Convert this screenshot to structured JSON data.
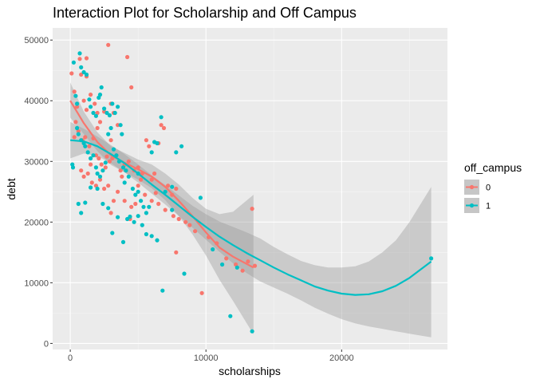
{
  "chart_data": {
    "type": "scatter",
    "title": "Interaction Plot for Scholarship and Off Campus",
    "xlabel": "scholarships",
    "ylabel": "debt",
    "xlim": [
      -1300,
      27800
    ],
    "ylim": [
      -1000,
      52000
    ],
    "x_ticks": [
      0,
      10000,
      20000
    ],
    "x_tick_labels": [
      "0",
      "10000",
      "20000"
    ],
    "y_ticks": [
      0,
      10000,
      20000,
      30000,
      40000,
      50000
    ],
    "y_tick_labels": [
      "0",
      "10000",
      "20000",
      "30000",
      "40000",
      "50000"
    ],
    "grid": true,
    "legend": {
      "title": "off_campus",
      "placement": "right"
    },
    "series": [
      {
        "name": "0",
        "color": "#F8766D",
        "points": [
          [
            100,
            44500
          ],
          [
            300,
            41500
          ],
          [
            500,
            39000
          ],
          [
            800,
            44300
          ],
          [
            1000,
            40000
          ],
          [
            1200,
            38500
          ],
          [
            1500,
            41000
          ],
          [
            1800,
            39500
          ],
          [
            2000,
            38000
          ],
          [
            2200,
            36500
          ],
          [
            2500,
            38200
          ],
          [
            2800,
            49200
          ],
          [
            3000,
            39500
          ],
          [
            3200,
            38000
          ],
          [
            3500,
            36000
          ],
          [
            4200,
            47200
          ],
          [
            4500,
            42200
          ],
          [
            1200,
            47000
          ],
          [
            700,
            46900
          ],
          [
            400,
            36500
          ],
          [
            600,
            35000
          ],
          [
            900,
            33500
          ],
          [
            1100,
            34000
          ],
          [
            1400,
            32500
          ],
          [
            1700,
            33800
          ],
          [
            1900,
            31000
          ],
          [
            2100,
            30500
          ],
          [
            2300,
            29500
          ],
          [
            2600,
            29000
          ],
          [
            2900,
            30000
          ],
          [
            3100,
            30500
          ],
          [
            3400,
            31000
          ],
          [
            3700,
            28500
          ],
          [
            4000,
            29500
          ],
          [
            4300,
            30000
          ],
          [
            4700,
            28500
          ],
          [
            5000,
            29000
          ],
          [
            5300,
            28000
          ],
          [
            5600,
            33500
          ],
          [
            5800,
            32500
          ],
          [
            6000,
            27000
          ],
          [
            6200,
            28000
          ],
          [
            6500,
            33000
          ],
          [
            6700,
            36000
          ],
          [
            6900,
            35500
          ],
          [
            7200,
            26000
          ],
          [
            7500,
            24500
          ],
          [
            7800,
            25500
          ],
          [
            800,
            28500
          ],
          [
            1000,
            27500
          ],
          [
            1300,
            28000
          ],
          [
            1600,
            26500
          ],
          [
            1900,
            26000
          ],
          [
            2200,
            27000
          ],
          [
            2500,
            25500
          ],
          [
            2800,
            26000
          ],
          [
            3000,
            21500
          ],
          [
            3200,
            23500
          ],
          [
            3500,
            25000
          ],
          [
            4000,
            23500
          ],
          [
            4500,
            22500
          ],
          [
            5000,
            26000
          ],
          [
            5500,
            24500
          ],
          [
            6000,
            23500
          ],
          [
            6500,
            23000
          ],
          [
            7000,
            22000
          ],
          [
            7600,
            21000
          ],
          [
            8000,
            20500
          ],
          [
            8500,
            20000
          ],
          [
            8800,
            19500
          ],
          [
            9200,
            18500
          ],
          [
            9700,
            8300
          ],
          [
            10200,
            17500
          ],
          [
            10800,
            16500
          ],
          [
            11500,
            14000
          ],
          [
            12200,
            13000
          ],
          [
            12700,
            12000
          ],
          [
            13100,
            13500
          ],
          [
            13400,
            22200
          ],
          [
            13600,
            12800
          ],
          [
            1200,
            44000
          ],
          [
            2000,
            35500
          ],
          [
            3000,
            33500
          ],
          [
            4400,
            20500
          ],
          [
            7800,
            15000
          ],
          [
            5200,
            27000
          ],
          [
            300,
            34000
          ],
          [
            1500,
            29500
          ],
          [
            2700,
            30800
          ],
          [
            3800,
            27500
          ],
          [
            6300,
            24800
          ],
          [
            4800,
            23000
          ]
        ]
      },
      {
        "name": "1",
        "color": "#00BFC4",
        "points": [
          [
            150,
            29500
          ],
          [
            200,
            29000
          ],
          [
            250,
            46300
          ],
          [
            400,
            40800
          ],
          [
            500,
            39500
          ],
          [
            700,
            47800
          ],
          [
            800,
            45500
          ],
          [
            1000,
            44700
          ],
          [
            1200,
            44300
          ],
          [
            1400,
            40200
          ],
          [
            1500,
            39000
          ],
          [
            1700,
            38000
          ],
          [
            1900,
            37500
          ],
          [
            2100,
            40500
          ],
          [
            2200,
            41000
          ],
          [
            2300,
            42200
          ],
          [
            2500,
            38700
          ],
          [
            2700,
            38000
          ],
          [
            2900,
            37600
          ],
          [
            3100,
            39500
          ],
          [
            3300,
            38000
          ],
          [
            3500,
            39000
          ],
          [
            3700,
            36000
          ],
          [
            3800,
            34500
          ],
          [
            500,
            35500
          ],
          [
            600,
            34500
          ],
          [
            800,
            33500
          ],
          [
            1000,
            33000
          ],
          [
            1100,
            32500
          ],
          [
            1300,
            31500
          ],
          [
            1500,
            30500
          ],
          [
            1700,
            31000
          ],
          [
            1900,
            29000
          ],
          [
            2000,
            28000
          ],
          [
            2200,
            27500
          ],
          [
            2400,
            28500
          ],
          [
            2600,
            29800
          ],
          [
            2800,
            34500
          ],
          [
            3000,
            35500
          ],
          [
            3200,
            32000
          ],
          [
            3400,
            31000
          ],
          [
            3600,
            30000
          ],
          [
            3900,
            29000
          ],
          [
            4100,
            28500
          ],
          [
            4300,
            27500
          ],
          [
            4600,
            25500
          ],
          [
            4800,
            24500
          ],
          [
            5000,
            25000
          ],
          [
            5200,
            23500
          ],
          [
            5400,
            22500
          ],
          [
            5600,
            21500
          ],
          [
            5800,
            22500
          ],
          [
            6000,
            31500
          ],
          [
            6200,
            33200
          ],
          [
            6400,
            33000
          ],
          [
            6700,
            37300
          ],
          [
            7000,
            25000
          ],
          [
            7500,
            22000
          ],
          [
            7800,
            31500
          ],
          [
            8200,
            32500
          ],
          [
            8400,
            11500
          ],
          [
            9600,
            24000
          ],
          [
            10500,
            15500
          ],
          [
            11200,
            13000
          ],
          [
            11800,
            4500
          ],
          [
            12300,
            12500
          ],
          [
            13400,
            2000
          ],
          [
            26600,
            14000
          ],
          [
            600,
            23000
          ],
          [
            800,
            21500
          ],
          [
            1100,
            23200
          ],
          [
            1500,
            25700
          ],
          [
            2000,
            25500
          ],
          [
            2400,
            23000
          ],
          [
            2800,
            22300
          ],
          [
            3100,
            18200
          ],
          [
            3500,
            20800
          ],
          [
            3900,
            16700
          ],
          [
            4200,
            20500
          ],
          [
            4400,
            20900
          ],
          [
            4700,
            20000
          ],
          [
            5000,
            21000
          ],
          [
            5300,
            19500
          ],
          [
            5600,
            18000
          ],
          [
            6000,
            17700
          ],
          [
            6400,
            17000
          ],
          [
            6800,
            8700
          ],
          [
            7500,
            25800
          ],
          [
            5000,
            28000
          ],
          [
            4000,
            26500
          ]
        ]
      }
    ],
    "fits": [
      {
        "name": "0",
        "x": [
          0,
          1000,
          2000,
          3000,
          4000,
          5000,
          6000,
          7000,
          8000,
          9000,
          10000,
          11000,
          12000,
          13500
        ],
        "y": [
          40000,
          36300,
          33200,
          31000,
          29800,
          28700,
          27500,
          25800,
          23500,
          21000,
          18300,
          15800,
          14300,
          12500
        ],
        "lower": [
          37200,
          34500,
          31700,
          29400,
          28200,
          27000,
          25600,
          23600,
          21000,
          18000,
          14500,
          10500,
          7000,
          1500
        ],
        "upper": [
          43000,
          38200,
          34800,
          32500,
          31400,
          30300,
          29500,
          28000,
          26200,
          24000,
          22200,
          21300,
          21700,
          24500
        ]
      },
      {
        "name": "1",
        "x": [
          0,
          1000,
          2000,
          3000,
          4000,
          5000,
          6000,
          7000,
          8000,
          9000,
          10000,
          11000,
          12000,
          13000,
          14000,
          15000,
          16000,
          17000,
          18000,
          19000,
          20000,
          21000,
          22000,
          23000,
          24000,
          25000,
          26600
        ],
        "y": [
          33500,
          33300,
          32500,
          31200,
          29700,
          28000,
          26200,
          24500,
          22700,
          20900,
          19200,
          17600,
          16200,
          14900,
          13700,
          12500,
          11400,
          10400,
          9400,
          8700,
          8200,
          8000,
          8100,
          8600,
          9500,
          10800,
          13500
        ],
        "lower": [
          30500,
          31300,
          30900,
          29700,
          28200,
          26500,
          24700,
          22900,
          21000,
          19100,
          17100,
          15100,
          13200,
          11600,
          10200,
          9200,
          8200,
          7100,
          5900,
          4900,
          4000,
          3300,
          2800,
          2400,
          2000,
          1600,
          1000
        ],
        "upper": [
          36500,
          35400,
          34100,
          32700,
          31200,
          29500,
          27700,
          26100,
          24400,
          22700,
          21300,
          20100,
          19200,
          18300,
          17300,
          15900,
          14700,
          13600,
          12900,
          12500,
          12500,
          12700,
          13500,
          15000,
          17000,
          20000,
          25800
        ]
      }
    ]
  }
}
